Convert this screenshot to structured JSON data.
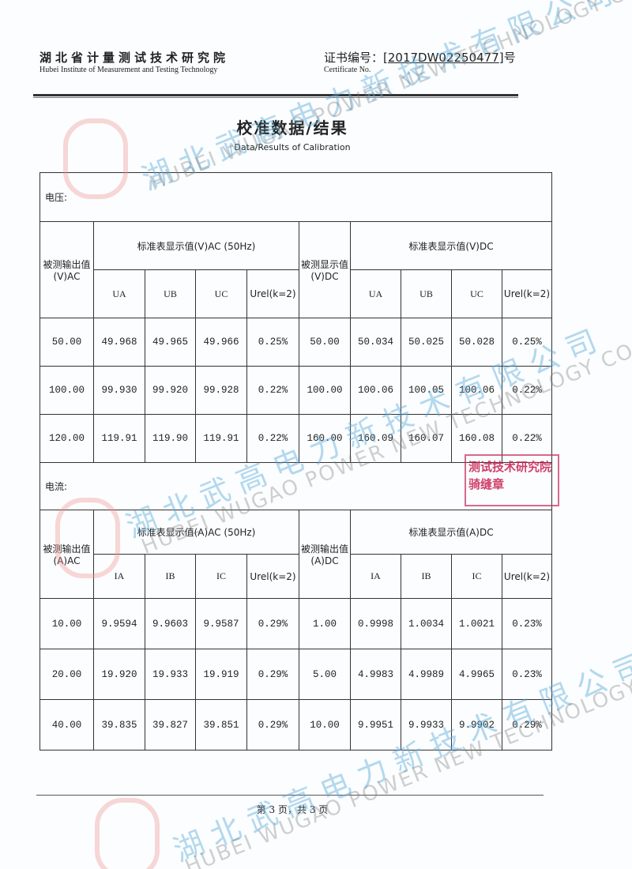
{
  "header": {
    "institute_cn": "湖北省计量测试技术研究院",
    "institute_en": "Hubei Institute of Measurement and Testing Technology",
    "cert_label_cn": "证书编号：[",
    "cert_number": "2017DW02250477",
    "cert_suffix": "]号",
    "cert_label_en": "Certificate No."
  },
  "title": "校准数据/结果",
  "subtitle": "Data/Results of Calibration",
  "voltage": {
    "section": "电压:",
    "col_tested_ac": "被测输出值(V)AC",
    "group_ac": "标准表显示值(V)AC  (50Hz)",
    "col_tested_dc": "被测显示值(V)DC",
    "group_dc": "标准表显示值(V)DC",
    "sub": [
      "UA",
      "UB",
      "UC",
      "Urel(k=2)"
    ],
    "rows": [
      [
        "50.00",
        "49.968",
        "49.965",
        "49.966",
        "0.25%",
        "50.00",
        "50.034",
        "50.025",
        "50.028",
        "0.25%"
      ],
      [
        "100.00",
        "99.930",
        "99.920",
        "99.928",
        "0.22%",
        "100.00",
        "100.06",
        "100.05",
        "100.06",
        "0.22%"
      ],
      [
        "120.00",
        "119.91",
        "119.90",
        "119.91",
        "0.22%",
        "160.00",
        "160.09",
        "160.07",
        "160.08",
        "0.22%"
      ]
    ]
  },
  "current": {
    "section": "电流:",
    "col_tested_ac": "被测输出值(A)AC",
    "group_ac": "标准表显示值(A)AC  (50Hz)",
    "col_tested_dc": "被测输出值(A)DC",
    "group_dc": "标准表显示值(A)DC",
    "sub": [
      "IA",
      "IB",
      "IC",
      "Urel(k=2)"
    ],
    "rows": [
      [
        "10.00",
        "9.9594",
        "9.9603",
        "9.9587",
        "0.29%",
        "1.00",
        "0.9998",
        "1.0034",
        "1.0021",
        "0.23%"
      ],
      [
        "20.00",
        "19.920",
        "19.933",
        "19.919",
        "0.29%",
        "5.00",
        "4.9983",
        "4.9989",
        "4.9965",
        "0.23%"
      ],
      [
        "40.00",
        "39.835",
        "39.827",
        "39.851",
        "0.29%",
        "10.00",
        "9.9951",
        "9.9933",
        "9.9902",
        "0.29%"
      ]
    ]
  },
  "footer": "第 3 页，共 3 页",
  "watermark": {
    "cn": "湖北武高电力新技术有限公司",
    "en": "HUBEI WUGAO POWER NEW TECHNOLOGY CO.,LTD"
  },
  "stamp": {
    "line1": "测试技术研究院",
    "line2": "骑缝章"
  }
}
